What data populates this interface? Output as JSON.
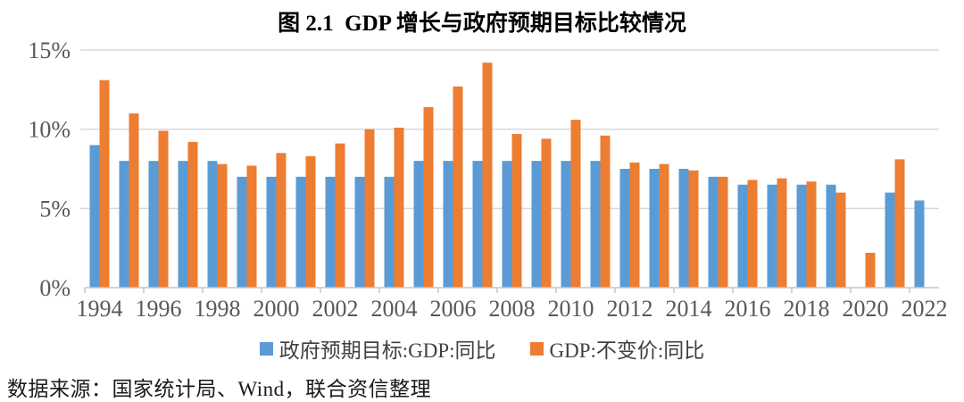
{
  "figure": {
    "source_note": "数据来源：国家统计局、Wind，联合资信整理"
  },
  "chart_data": {
    "type": "bar",
    "title": "图 2.1  GDP 增长与政府预期目标比较情况",
    "categories": [
      1994,
      1995,
      1996,
      1997,
      1998,
      1999,
      2000,
      2001,
      2002,
      2003,
      2004,
      2005,
      2006,
      2007,
      2008,
      2009,
      2010,
      2011,
      2012,
      2013,
      2014,
      2015,
      2016,
      2017,
      2018,
      2019,
      2020,
      2021,
      2022
    ],
    "x_tick_labels": [
      "1994",
      "1996",
      "1998",
      "2000",
      "2002",
      "2004",
      "2006",
      "2008",
      "2010",
      "2012",
      "2014",
      "2016",
      "2018",
      "2020",
      "2022"
    ],
    "series": [
      {
        "name": "政府预期目标:GDP:同比",
        "color": "#5B9BD5",
        "values": [
          9,
          8,
          8,
          8,
          8,
          7,
          7,
          7,
          7,
          7,
          7,
          8,
          8,
          8,
          8,
          8,
          8,
          8,
          7.5,
          7.5,
          7.5,
          7,
          6.5,
          6.5,
          6.5,
          6.5,
          null,
          6,
          5.5
        ]
      },
      {
        "name": "GDP:不变价:同比",
        "color": "#ED7D31",
        "values": [
          13.1,
          11,
          9.9,
          9.2,
          7.8,
          7.7,
          8.5,
          8.3,
          9.1,
          10,
          10.1,
          11.4,
          12.7,
          14.2,
          9.7,
          9.4,
          10.6,
          9.6,
          7.9,
          7.8,
          7.4,
          7,
          6.8,
          6.9,
          6.7,
          6,
          2.2,
          8.1,
          null
        ]
      }
    ],
    "ylabel": "",
    "xlabel": "",
    "ylim": [
      0,
      15
    ],
    "y_tick_labels": [
      "0%",
      "5%",
      "10%",
      "15%"
    ],
    "grid": true,
    "legend_position": "bottom",
    "colors": {
      "gridline": "#D9D9D9",
      "axis_line": "#C6C6C6",
      "tick_label": "#595959"
    }
  }
}
